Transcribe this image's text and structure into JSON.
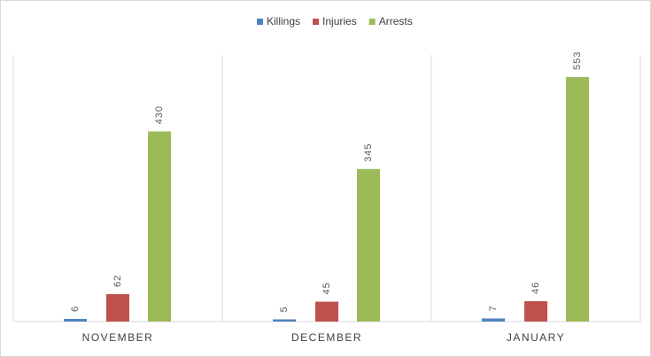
{
  "chart_data": {
    "type": "bar",
    "categories": [
      "NOVEMBER",
      "DECEMBER",
      "JANUARY"
    ],
    "series": [
      {
        "name": "Killings",
        "color": "#4f81bd",
        "values": [
          6,
          5,
          7
        ]
      },
      {
        "name": "Injuries",
        "color": "#c0504d",
        "values": [
          62,
          45,
          46
        ]
      },
      {
        "name": "Arrests",
        "color": "#9bbb59",
        "values": [
          430,
          345,
          553
        ]
      }
    ],
    "legend": "top"
  }
}
